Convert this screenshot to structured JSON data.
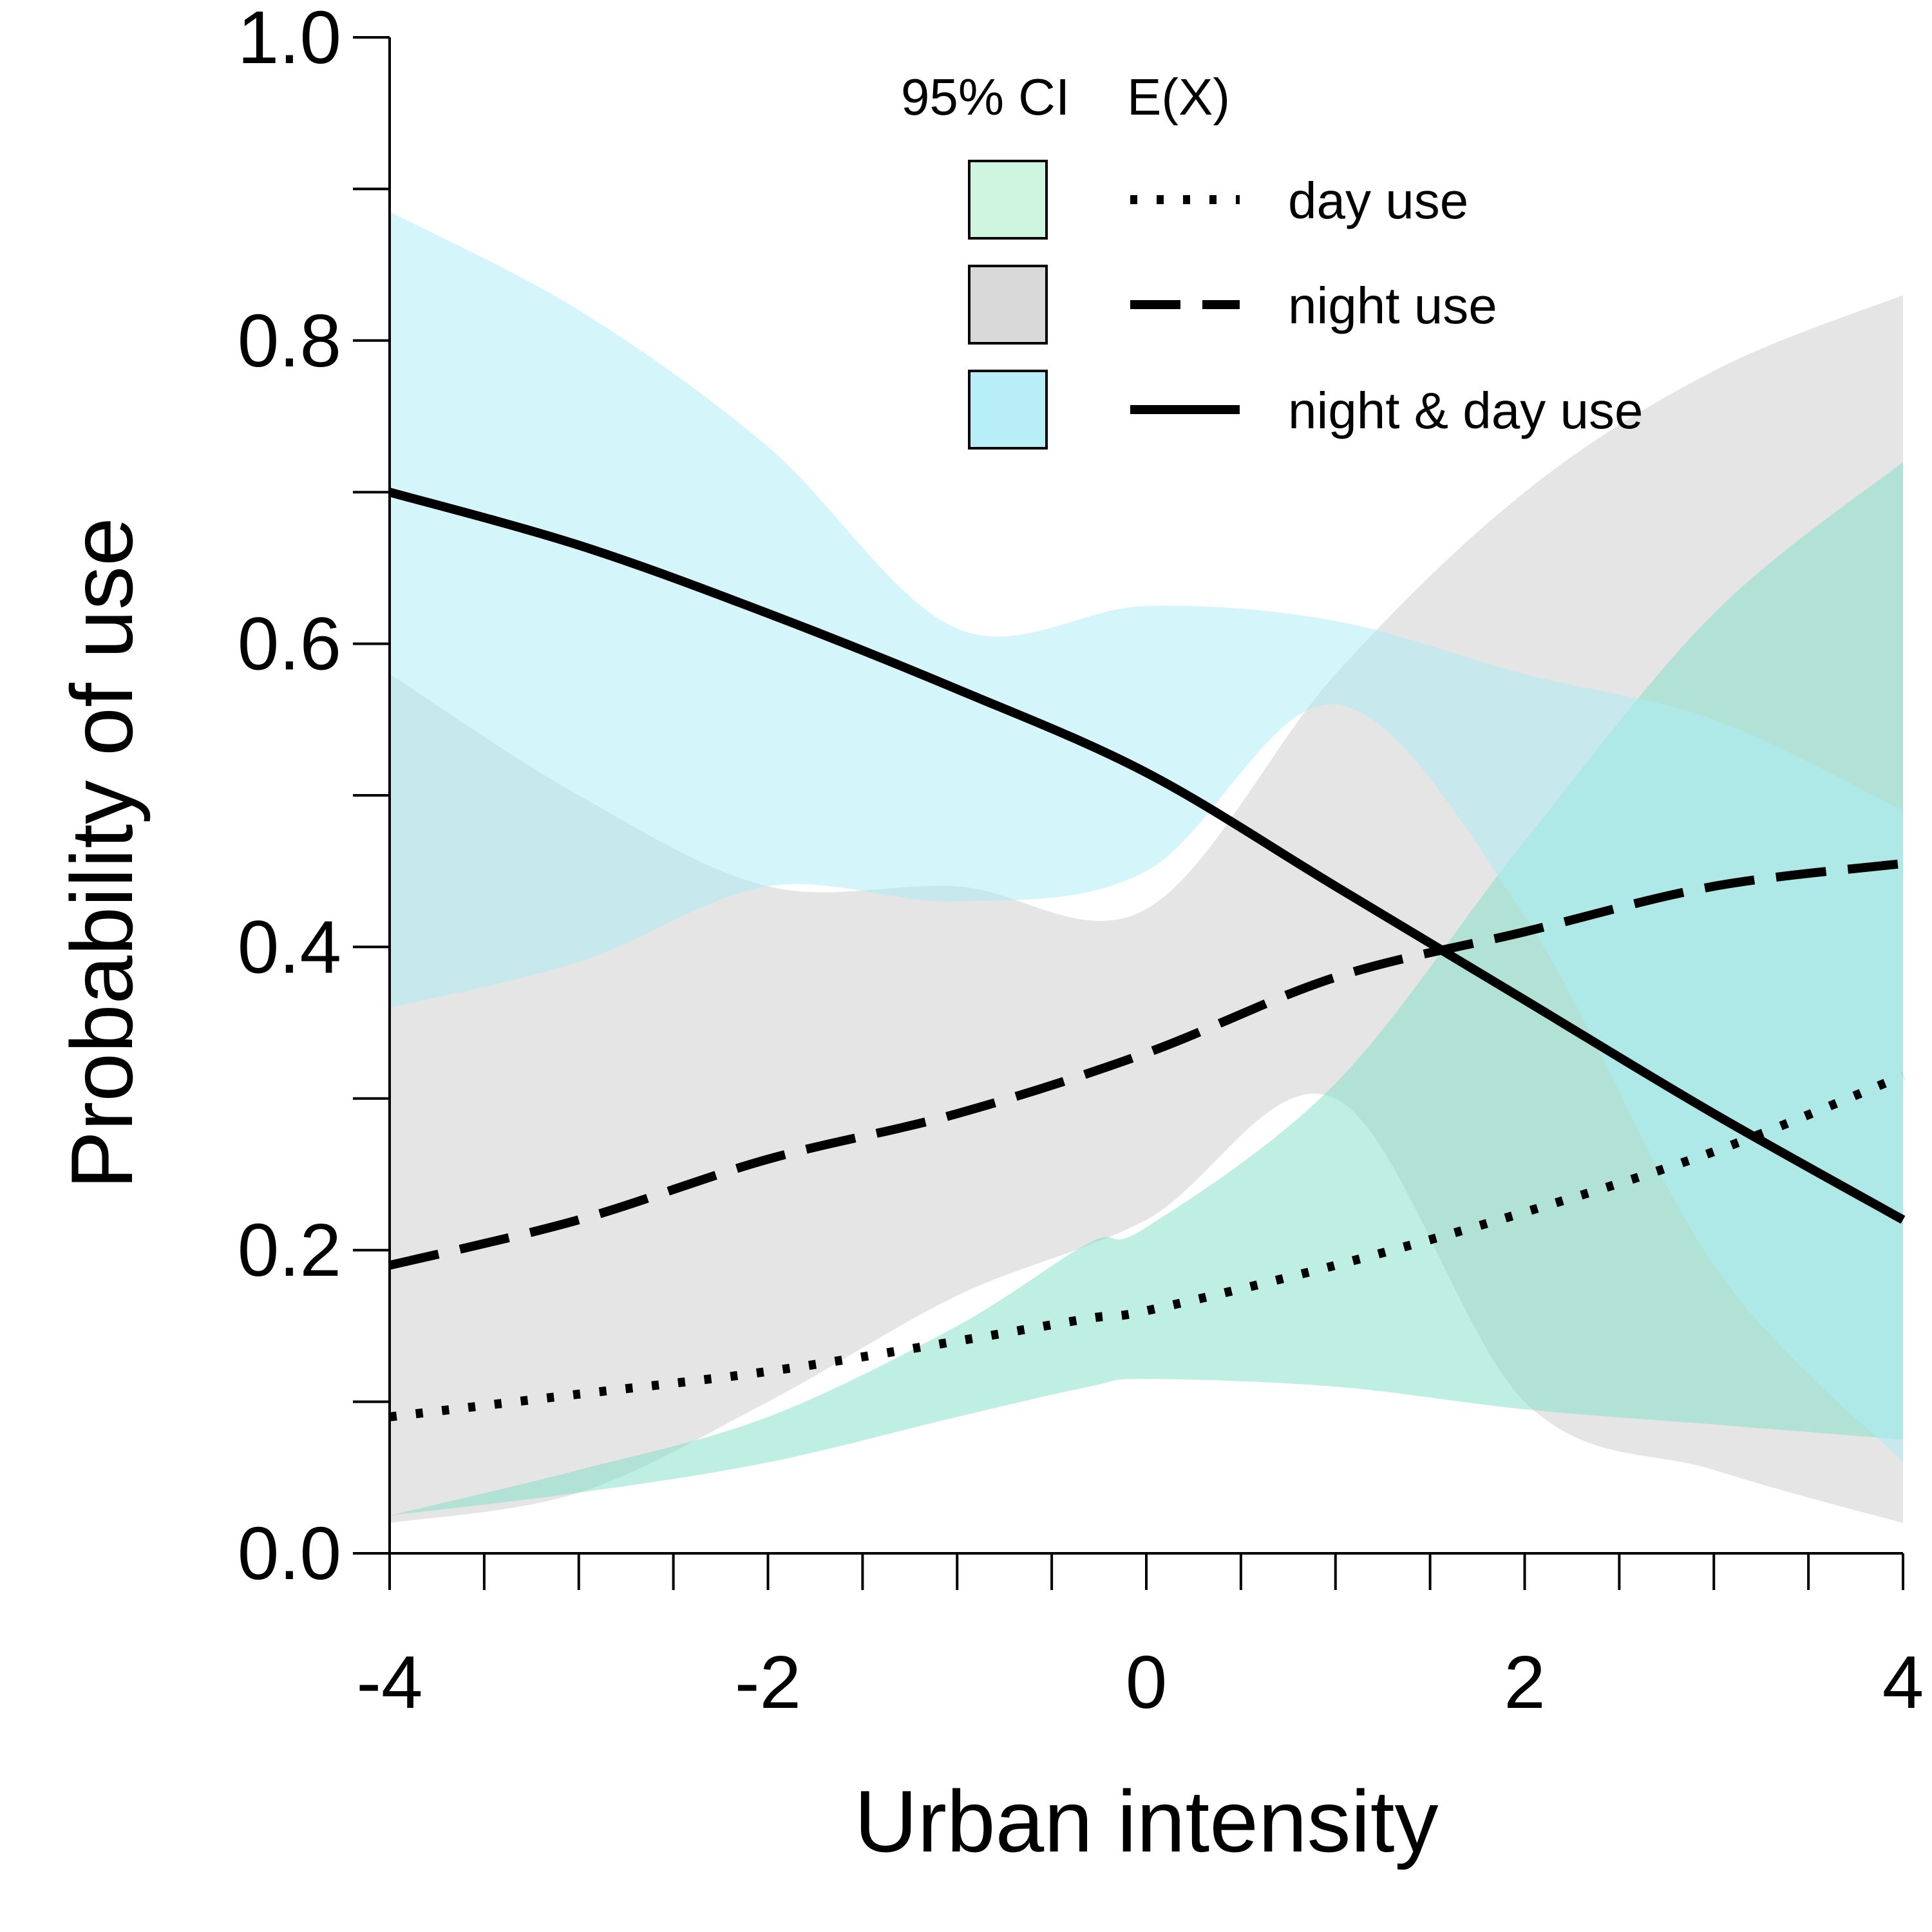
{
  "chart_data": {
    "type": "line",
    "xlabel": "Urban intensity",
    "ylabel": "Probability of use",
    "xlim": [
      -4,
      4
    ],
    "ylim": [
      0,
      1
    ],
    "x_major_ticks": [
      -4,
      -2,
      0,
      2,
      4
    ],
    "x_tick_labels": [
      "-4",
      "-2",
      "0",
      "2",
      "4"
    ],
    "x_minor_step": 0.5,
    "y_major_ticks": [
      0,
      0.2,
      0.4,
      0.6,
      0.8,
      1.0
    ],
    "y_tick_labels": [
      "0.0",
      "0.2",
      "0.4",
      "0.6",
      "0.8",
      "1.0"
    ],
    "y_minor_step": 0.1,
    "grid": false,
    "legend": {
      "position": "top-center",
      "header_ci": "95% CI",
      "header_ex": "E(X)"
    },
    "series": [
      {
        "name": "day use",
        "line_style": "dotted",
        "ci_color": "#7fe0c8",
        "legend_swatch_color": "#cdf5df",
        "x": [
          -4,
          -3,
          -2,
          -1,
          -0.3,
          0,
          1,
          2,
          3,
          4
        ],
        "y": [
          0.09,
          0.105,
          0.12,
          0.14,
          0.155,
          0.16,
          0.19,
          0.225,
          0.265,
          0.315
        ],
        "lower": [
          0.025,
          0.04,
          0.06,
          0.09,
          0.11,
          0.115,
          0.11,
          0.095,
          0.085,
          0.075
        ],
        "upper": [
          0.025,
          0.055,
          0.09,
          0.15,
          0.205,
          0.215,
          0.31,
          0.47,
          0.62,
          0.72
        ]
      },
      {
        "name": "night use",
        "line_style": "dashed",
        "ci_color": "#cccccc",
        "legend_swatch_color": "#d9d9d9",
        "x": [
          -4,
          -3,
          -2,
          -1,
          0,
          1,
          2,
          3,
          4
        ],
        "y": [
          0.19,
          0.22,
          0.26,
          0.29,
          0.33,
          0.38,
          0.41,
          0.44,
          0.455
        ],
        "lower": [
          0.02,
          0.04,
          0.1,
          0.17,
          0.22,
          0.3,
          0.1,
          0.055,
          0.02
        ],
        "upper": [
          0.58,
          0.5,
          0.44,
          0.44,
          0.425,
          0.58,
          0.7,
          0.78,
          0.83
        ]
      },
      {
        "name": "night & day use",
        "line_style": "solid",
        "ci_color": "#aaeef7",
        "legend_swatch_color": "#b8eef8",
        "x": [
          -4,
          -3,
          -2,
          -1,
          0,
          1,
          2,
          3,
          4
        ],
        "y": [
          0.7,
          0.665,
          0.62,
          0.57,
          0.515,
          0.44,
          0.365,
          0.29,
          0.22
        ],
        "lower": [
          0.36,
          0.39,
          0.44,
          0.43,
          0.45,
          0.56,
          0.42,
          0.19,
          0.06
        ],
        "upper": [
          0.885,
          0.82,
          0.73,
          0.61,
          0.625,
          0.615,
          0.58,
          0.55,
          0.49
        ]
      }
    ]
  }
}
